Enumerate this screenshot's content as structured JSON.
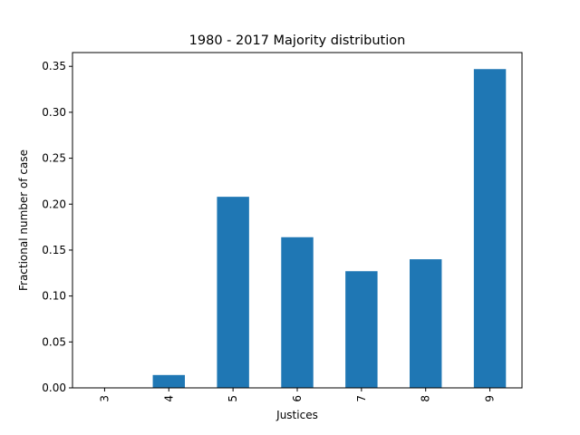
{
  "chart_data": {
    "type": "bar",
    "title": "1980 - 2017 Majority distribution",
    "xlabel": "Justices",
    "ylabel": "Fractional number of case",
    "categories": [
      "3",
      "4",
      "5",
      "6",
      "7",
      "8",
      "9"
    ],
    "values": [
      0.0,
      0.014,
      0.208,
      0.164,
      0.127,
      0.14,
      0.347
    ],
    "ylim": [
      0,
      0.365
    ],
    "yticks": [
      "0.00",
      "0.05",
      "0.10",
      "0.15",
      "0.20",
      "0.25",
      "0.30",
      "0.35"
    ],
    "ytick_values": [
      0,
      0.05,
      0.1,
      0.15,
      0.2,
      0.25,
      0.3,
      0.35
    ],
    "bar_color": "#1f77b4",
    "grid": false,
    "legend": "none",
    "xtick_rotation": "vertical"
  }
}
